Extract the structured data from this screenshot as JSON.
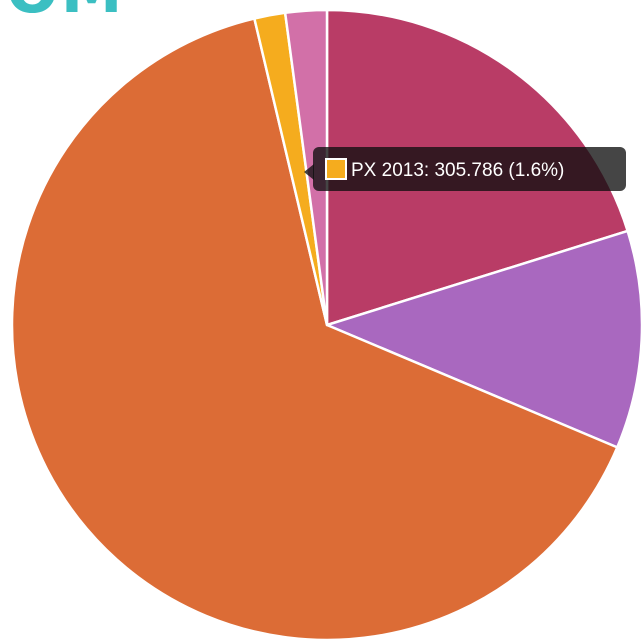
{
  "colors": {
    "title": "#3bbfc2",
    "page_bg": "#ffffff",
    "slice_border": "#ffffff",
    "tooltip_bg": "#0e0e0e"
  },
  "title_fragment": "OM",
  "chart_data": {
    "type": "pie",
    "start_angle_deg": 0,
    "direction": "clockwise",
    "legend": "none",
    "slices": [
      {
        "value": 3900,
        "color": "#b93c66"
      },
      {
        "value": 2160,
        "color": "#a968bf"
      },
      {
        "value": 12554,
        "color": "#dc6c36"
      },
      {
        "value": 305.786,
        "color": "#f5ac1e",
        "label": "PX 2013",
        "percent_label": "1.6%"
      },
      {
        "value": 410,
        "color": "#d270a8"
      }
    ],
    "tooltip": {
      "slice_index": 3,
      "text": "PX 2013: 305.786 (1.6%)"
    }
  }
}
